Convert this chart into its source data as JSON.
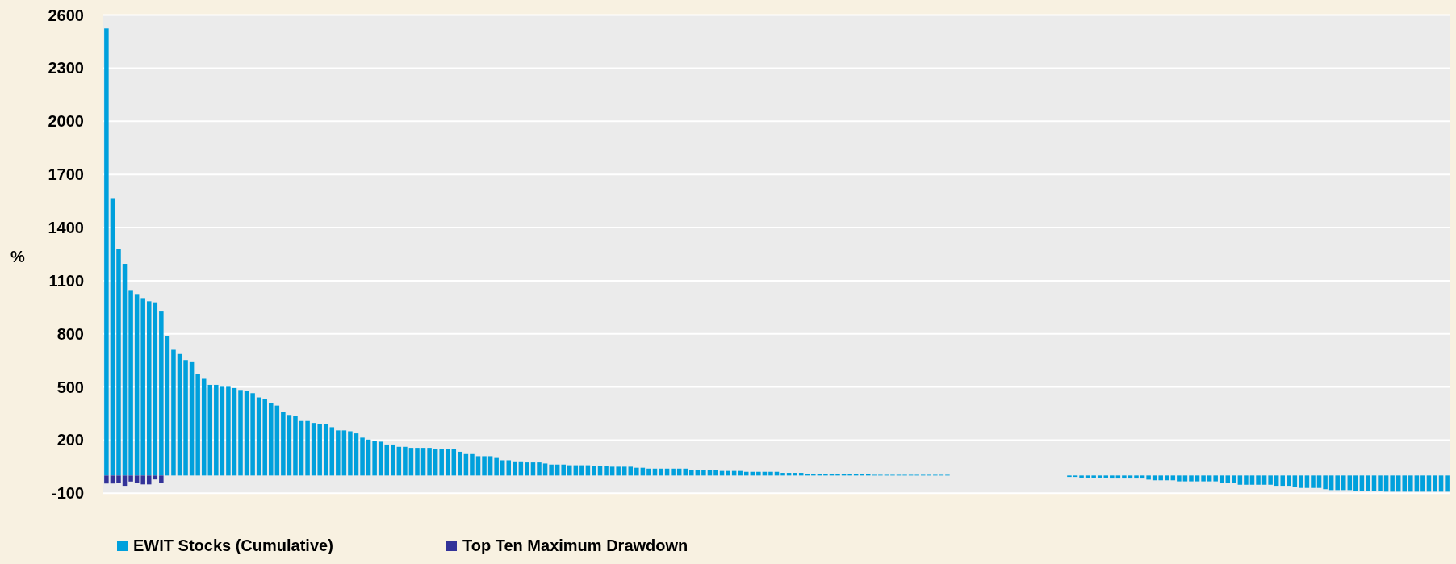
{
  "chart_data": {
    "type": "bar",
    "ylabel": "%",
    "stacked": true,
    "grid": "y",
    "legend": "bottom",
    "ylim": [
      -100,
      2600
    ],
    "yticks": [
      -100,
      200,
      500,
      800,
      1100,
      1400,
      1700,
      2000,
      2300,
      2600
    ],
    "categories": [
      null,
      null,
      null,
      null,
      null,
      null,
      null,
      null,
      null,
      null,
      null,
      null,
      null,
      null,
      null,
      null,
      null,
      null,
      null,
      null,
      null,
      null,
      null,
      null,
      null,
      null,
      null,
      null,
      null,
      null,
      null,
      null,
      null,
      null,
      null,
      null,
      null,
      null,
      null,
      null,
      null,
      null,
      null,
      null,
      null,
      null,
      null,
      null,
      null,
      null,
      null,
      null,
      null,
      null,
      null,
      null,
      null,
      null,
      null,
      null,
      null,
      null,
      null,
      null,
      null,
      null,
      null,
      null,
      null,
      null,
      null,
      null,
      null,
      null,
      null,
      null,
      null,
      null,
      null,
      null,
      null,
      null,
      null,
      null,
      null,
      null,
      null,
      null,
      null,
      null,
      null,
      null,
      null,
      null,
      null,
      null,
      null,
      null,
      null,
      null,
      null,
      null,
      null,
      null,
      null,
      null,
      null,
      null,
      null,
      null,
      null,
      null,
      null,
      null,
      null,
      null,
      null,
      null,
      null,
      null,
      null,
      null,
      null,
      null,
      null,
      null,
      null,
      null,
      null,
      null,
      null,
      null,
      null,
      null,
      null,
      null,
      null,
      null,
      null,
      null,
      null,
      null,
      null,
      null,
      null,
      null,
      null,
      null,
      null,
      null,
      null,
      null,
      null,
      null,
      null,
      null,
      null,
      null,
      null,
      null,
      null,
      null,
      null,
      null,
      null,
      null,
      null,
      null,
      null,
      null,
      null,
      null,
      null,
      null,
      null,
      null,
      null,
      null,
      null,
      null,
      null,
      null,
      null,
      null,
      null,
      null,
      null,
      null,
      null,
      null,
      null,
      null,
      null,
      null,
      null,
      null,
      null,
      null,
      null,
      null,
      null,
      null,
      null,
      null,
      null,
      null,
      null,
      null,
      null,
      null,
      null,
      null,
      null,
      null,
      null,
      null,
      null,
      null,
      null,
      null,
      null
    ],
    "series": [
      {
        "name": "EWIT Stocks (Cumulative)",
        "color": "#00a0dc",
        "values": [
          2524,
          1562,
          1281,
          1195,
          1043,
          1025,
          1002,
          984,
          978,
          926,
          786,
          710,
          686,
          652,
          640,
          571,
          546,
          512,
          512,
          501,
          501,
          494,
          483,
          477,
          465,
          441,
          431,
          407,
          395,
          360,
          342,
          337,
          308,
          308,
          297,
          290,
          290,
          273,
          255,
          255,
          250,
          238,
          214,
          203,
          197,
          191,
          175,
          175,
          162,
          162,
          156,
          156,
          156,
          156,
          150,
          150,
          150,
          150,
          134,
          121,
          121,
          109,
          109,
          109,
          99,
          86,
          86,
          80,
          80,
          74,
          74,
          74,
          68,
          62,
          62,
          62,
          58,
          58,
          58,
          58,
          52,
          52,
          52,
          50,
          50,
          50,
          50,
          44,
          44,
          39,
          39,
          39,
          39,
          39,
          39,
          39,
          33,
          33,
          33,
          33,
          33,
          26,
          26,
          26,
          26,
          21,
          21,
          21,
          21,
          21,
          21,
          15,
          15,
          15,
          15,
          9,
          9,
          9,
          9,
          9,
          9,
          9,
          9,
          9,
          9,
          9,
          4,
          4,
          4,
          4,
          4,
          4,
          4,
          4,
          4,
          4,
          4,
          4,
          4,
          0,
          0,
          0,
          0,
          0,
          0,
          0,
          0,
          0,
          0,
          0,
          0,
          0,
          0,
          0,
          0,
          0,
          0,
          0,
          -8,
          -8,
          -12,
          -12,
          -12,
          -12,
          -12,
          -17,
          -17,
          -17,
          -17,
          -17,
          -17,
          -23,
          -27,
          -27,
          -27,
          -27,
          -33,
          -33,
          -33,
          -33,
          -33,
          -33,
          -33,
          -44,
          -44,
          -44,
          -52,
          -52,
          -52,
          -52,
          -52,
          -52,
          -58,
          -58,
          -58,
          -64,
          -70,
          -70,
          -70,
          -70,
          -77,
          -82,
          -82,
          -82,
          -82,
          -85,
          -85,
          -85,
          -85,
          -85,
          -91,
          -91,
          -91,
          -91,
          -91,
          -91,
          -91,
          -91,
          -91,
          -91,
          -91
        ]
      },
      {
        "name": "Top Ten Maximum Drawdown",
        "color": "#333399",
        "values": [
          -45,
          -45,
          -40,
          -58,
          -34,
          -40,
          -50,
          -50,
          -22,
          -40,
          null,
          null,
          null,
          null,
          null,
          null,
          null,
          null,
          null,
          null,
          null,
          null,
          null,
          null,
          null,
          null,
          null,
          null,
          null,
          null,
          null,
          null,
          null,
          null,
          null,
          null,
          null,
          null,
          null,
          null,
          null,
          null,
          null,
          null,
          null,
          null,
          null,
          null,
          null,
          null,
          null,
          null,
          null,
          null,
          null,
          null,
          null,
          null,
          null,
          null,
          null,
          null,
          null,
          null,
          null,
          null,
          null,
          null,
          null,
          null,
          null,
          null,
          null,
          null,
          null,
          null,
          null,
          null,
          null,
          null,
          null,
          null,
          null,
          null,
          null,
          null,
          null,
          null,
          null,
          null,
          null,
          null,
          null,
          null,
          null,
          null,
          null,
          null,
          null,
          null,
          null,
          null,
          null,
          null,
          null,
          null,
          null,
          null,
          null,
          null,
          null,
          null,
          null,
          null,
          null,
          null,
          null,
          null,
          null,
          null,
          null,
          null,
          null,
          null,
          null,
          null,
          null,
          null,
          null,
          null,
          null,
          null,
          null,
          null,
          null,
          null,
          null,
          null,
          null,
          null,
          null,
          null,
          null,
          null,
          null,
          null,
          null,
          null,
          null,
          null,
          null,
          null,
          null,
          null,
          null,
          null,
          null,
          null,
          null,
          null,
          null,
          null,
          null,
          null,
          null,
          null,
          null,
          null,
          null,
          null,
          null,
          null,
          null,
          null,
          null,
          null,
          null,
          null,
          null,
          null,
          null,
          null,
          null,
          null,
          null,
          null,
          null,
          null,
          null,
          null,
          null,
          null,
          null,
          null,
          null,
          null,
          null,
          null,
          null,
          null,
          null,
          null,
          null,
          null,
          null,
          null,
          null,
          null,
          null,
          null,
          null,
          null,
          null,
          null,
          null,
          null,
          null,
          null,
          null,
          null,
          null
        ]
      }
    ]
  }
}
